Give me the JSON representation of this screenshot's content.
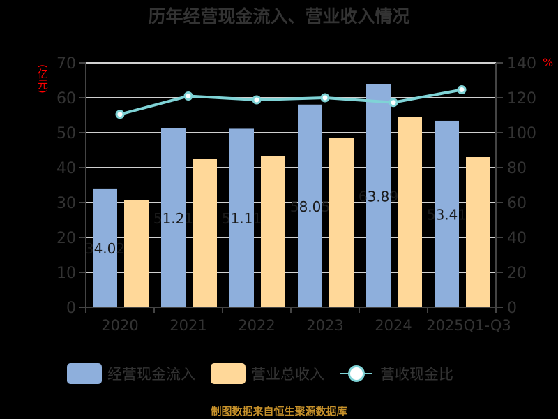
{
  "title": "历年经营现金流入、营业收入情况",
  "left_unit": "(亿元)",
  "right_unit": "%",
  "footer": "制图数据来自恒生聚源数据库",
  "legend": [
    {
      "label": "经营现金流入",
      "color": "#8eafdc",
      "kind": "bar"
    },
    {
      "label": "营业总收入",
      "color": "#ffd899",
      "kind": "bar"
    },
    {
      "label": "营收现金比",
      "color": "#7fd3d6",
      "kind": "line"
    }
  ],
  "colors": {
    "cash_inflow": "#8eafdc",
    "revenue": "#ffd899",
    "ratio_line": "#7fd3d6",
    "axis_text": "#333333",
    "gridline": "#d0d0d0",
    "title": "#333333",
    "unit": "#ff0000",
    "footer": "#c8922a"
  },
  "chart_data": {
    "type": "bar",
    "title": "历年经营现金流入、营业收入情况",
    "categories": [
      "2020",
      "2021",
      "2022",
      "2023",
      "2024",
      "2025Q1-Q3"
    ],
    "series": [
      {
        "name": "经营现金流入",
        "type": "bar",
        "axis": "left",
        "values": [
          34.02,
          51.21,
          51.11,
          58.05,
          63.89,
          53.41
        ],
        "data_labels": [
          "34.02",
          "51.21",
          "51.11",
          "58.05",
          "63.89",
          "53.41"
        ]
      },
      {
        "name": "营业总收入",
        "type": "bar",
        "axis": "left",
        "values": [
          30.8,
          42.4,
          43.2,
          48.6,
          54.6,
          43.0
        ]
      },
      {
        "name": "营收现金比",
        "type": "line",
        "axis": "right",
        "values": [
          110.5,
          121.0,
          118.8,
          120.0,
          117.3,
          124.6
        ]
      }
    ],
    "xlabel": "",
    "ylabel": "(亿元)",
    "y2label": "%",
    "ylim": [
      0,
      70
    ],
    "y2lim": [
      0,
      140
    ],
    "yticks": [
      0,
      10,
      20,
      30,
      40,
      50,
      60,
      70
    ],
    "y2ticks": [
      0,
      20,
      40,
      60,
      80,
      100,
      120,
      140
    ],
    "grid": true,
    "legend_position": "bottom"
  }
}
